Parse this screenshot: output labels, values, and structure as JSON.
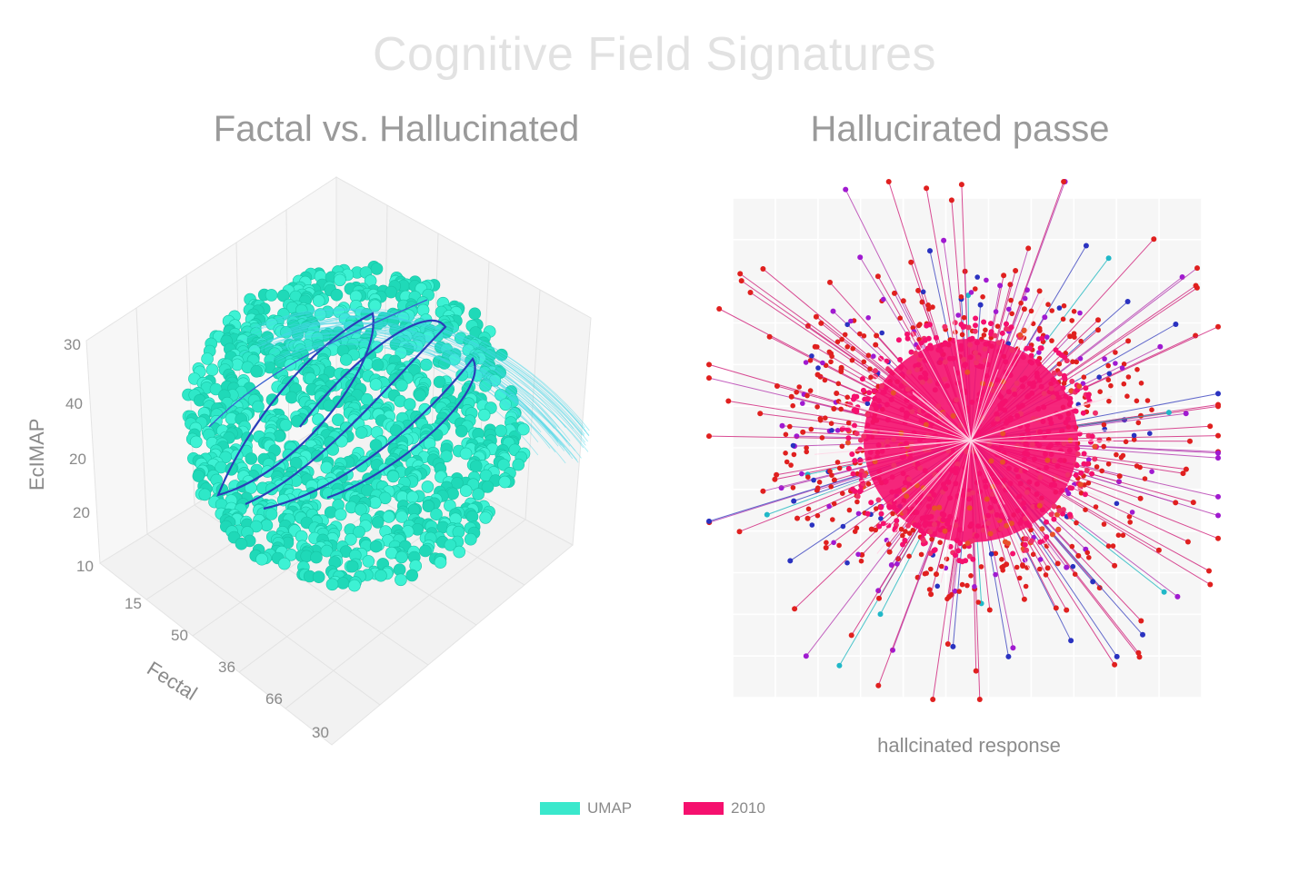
{
  "title": "Cognitive Field Signatures",
  "chart_data": [
    {
      "type": "scatter",
      "title": "Factal vs. Hallucinated",
      "projection": "3d",
      "axes": {
        "z": {
          "label": "EcIMAP",
          "ticks": [
            "30",
            "40",
            "20",
            "20",
            "10"
          ]
        },
        "x": {
          "label": "Fectal",
          "ticks": [
            "15",
            "50",
            "36",
            "66",
            "30"
          ]
        }
      },
      "series": [
        {
          "name": "UMAP",
          "color": "#2ee8c8",
          "point_count": 1200,
          "shape": "sphere cloud"
        }
      ],
      "overlay_color": "#2a3db8",
      "grid": true
    },
    {
      "type": "scatter",
      "title": "Hallucirated passe",
      "xlabel": "hallcinated response",
      "series": [
        {
          "name": "2010",
          "color": "#f5106e",
          "shape": "radial burst"
        }
      ],
      "marker_colors": [
        "#e0201f",
        "#a01ad0",
        "#2a32c0",
        "#20b8c8"
      ],
      "grid": true
    }
  ],
  "legend": [
    {
      "label": "UMAP",
      "color": "#3ae8cc"
    },
    {
      "label": "2010",
      "color": "#f5106e"
    }
  ]
}
